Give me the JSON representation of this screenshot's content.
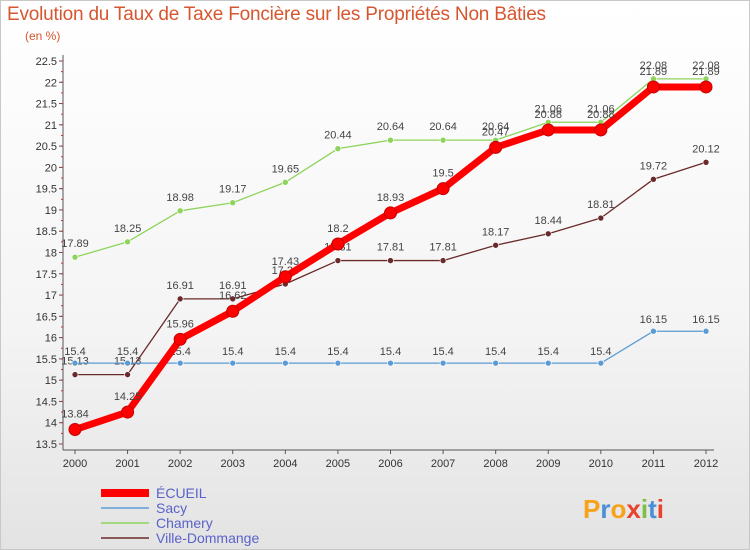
{
  "title": "Evolution du Taux de Taxe Foncière sur les Propriétés Non Bâties",
  "unit_label": "(en %)",
  "logo_text": "Proxiti",
  "colors": {
    "title": "#d6562f",
    "legend_text": "#5a63c9",
    "axis_text": "#333333",
    "grid": "#dddddd"
  },
  "chart_data": {
    "type": "line",
    "title": "Evolution du Taux de Taxe Foncière sur les Propriétés Non Bâties",
    "ylabel": "(en %)",
    "xlabel": "",
    "x": [
      "2000",
      "2001",
      "2002",
      "2003",
      "2004",
      "2005",
      "2006",
      "2007",
      "2008",
      "2009",
      "2010",
      "2011",
      "2012"
    ],
    "ylim": [
      13.5,
      22.5
    ],
    "yticks": [
      13.5,
      14,
      14.5,
      15,
      15.5,
      16,
      16.5,
      17,
      17.5,
      18,
      18.5,
      19,
      19.5,
      20,
      20.5,
      21,
      21.5,
      22,
      22.5
    ],
    "grid": false,
    "legend_position": "bottom-left",
    "series": [
      {
        "name": "ÉCUEIL",
        "color": "#ff0000",
        "values": [
          13.84,
          14.25,
          15.96,
          16.62,
          17.43,
          18.2,
          18.93,
          19.5,
          20.47,
          20.88,
          20.88,
          21.89,
          21.89
        ],
        "labels": [
          "13.84",
          "14.25",
          "15.96",
          "16.62",
          "17.43",
          "18.2",
          "18.93",
          "19.5",
          "20.47",
          "20.88",
          "20.88",
          "21.89",
          "21.89"
        ]
      },
      {
        "name": "Sacy",
        "color": "#5b9bd5",
        "values": [
          15.4,
          15.4,
          15.4,
          15.4,
          15.4,
          15.4,
          15.4,
          15.4,
          15.4,
          15.4,
          15.4,
          16.15,
          16.15
        ],
        "labels": [
          "15.4",
          "15.4",
          "15.4",
          "15.4",
          "15.4",
          "15.4",
          "15.4",
          "15.4",
          "15.4",
          "15.4",
          "15.4",
          "16.15",
          "16.15"
        ]
      },
      {
        "name": "Chamery",
        "color": "#8ed35b",
        "values": [
          17.89,
          18.25,
          18.98,
          19.17,
          19.65,
          20.44,
          20.64,
          20.64,
          20.64,
          21.06,
          21.06,
          22.08,
          22.08
        ],
        "labels": [
          "17.89",
          "18.25",
          "18.98",
          "19.17",
          "19.65",
          "20.44",
          "20.64",
          "20.64",
          "20.64",
          "21.06",
          "21.06",
          "22.08",
          "22.08"
        ]
      },
      {
        "name": "Ville-Dommange",
        "color": "#6b2a2a",
        "values": [
          15.13,
          15.13,
          16.91,
          16.91,
          17.26,
          17.81,
          17.81,
          17.81,
          18.17,
          18.44,
          18.81,
          19.72,
          20.12
        ],
        "labels": [
          "15.13",
          "15.13",
          "16.91",
          "16.91",
          "17.26",
          "17.81",
          "17.81",
          "17.81",
          "18.17",
          "18.44",
          "18.81",
          "19.72",
          "20.12"
        ]
      }
    ]
  }
}
